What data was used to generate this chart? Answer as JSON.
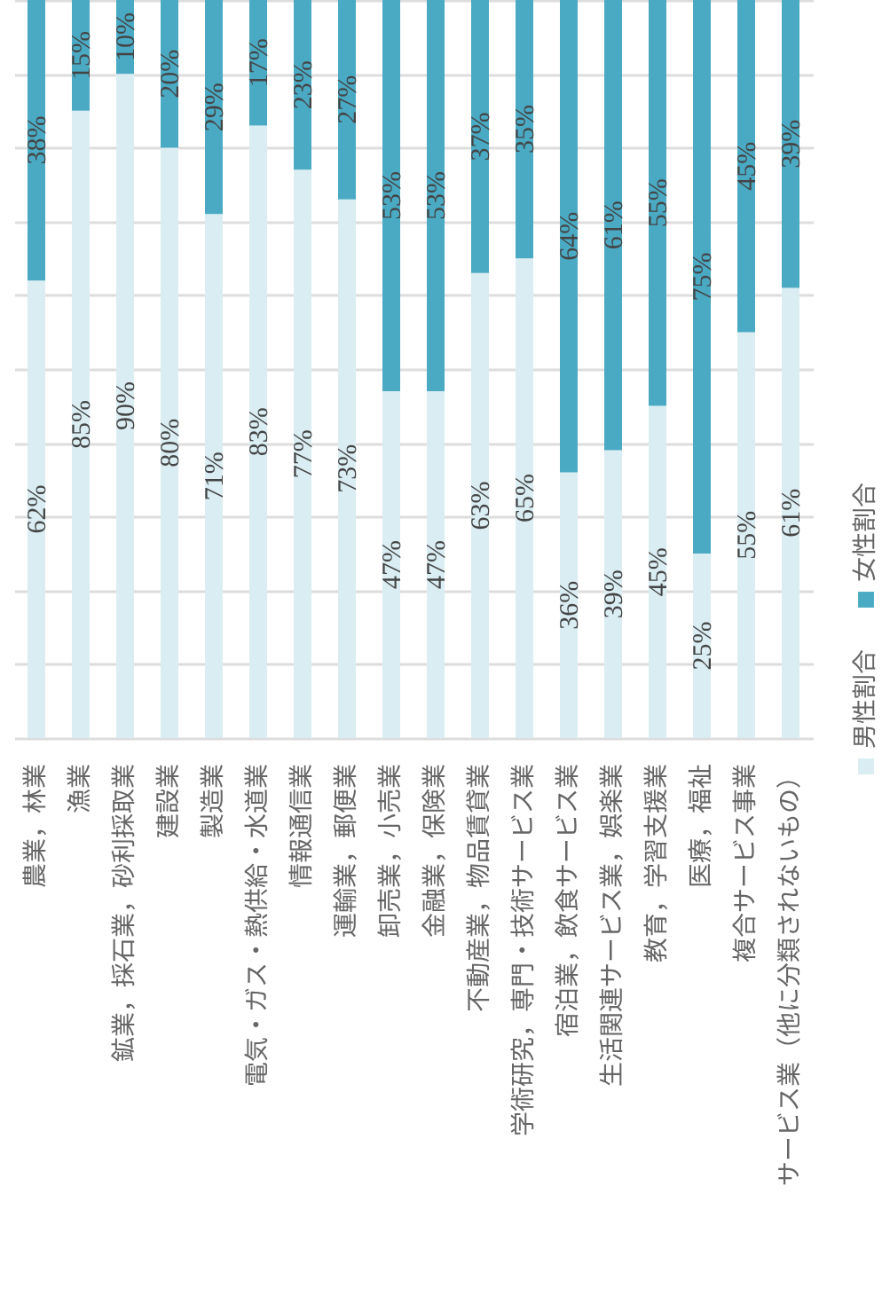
{
  "chart_data": {
    "type": "bar",
    "stacked": true,
    "categories": [
      "農業，林業",
      "漁業",
      "鉱業，採石業，砂利採取業",
      "建設業",
      "製造業",
      "電気・ガス・熱供給・水道業",
      "情報通信業",
      "運輸業，郵便業",
      "卸売業，小売業",
      "金融業，保険業",
      "不動産業，物品賃貸業",
      "学術研究，専門・技術サービス業",
      "宿泊業，飲食サービス業",
      "生活関連サービス業，娯楽業",
      "教育，学習支援業",
      "医療，福祉",
      "複合サービス事業",
      "サービス業（他に分類されないもの）"
    ],
    "series": [
      {
        "name": "男性割合",
        "color": "#d9edf2",
        "values": [
          62,
          85,
          90,
          80,
          71,
          83,
          77,
          73,
          47,
          47,
          63,
          65,
          36,
          39,
          45,
          25,
          55,
          61
        ],
        "value_labels": [
          "62%",
          "85%",
          "90%",
          "80%",
          "71%",
          "83%",
          "77%",
          "73%",
          "47%",
          "47%",
          "63%",
          "65%",
          "36%",
          "39%",
          "45%",
          "25%",
          "55%",
          "61%"
        ]
      },
      {
        "name": "女性割合",
        "color": "#4aaac4",
        "values": [
          38,
          15,
          10,
          20,
          29,
          17,
          23,
          27,
          53,
          53,
          37,
          35,
          64,
          61,
          55,
          75,
          45,
          39
        ],
        "value_labels": [
          "38%",
          "15%",
          "10%",
          "20%",
          "29%",
          "17%",
          "23%",
          "27%",
          "53%",
          "53%",
          "37%",
          "35%",
          "64%",
          "61%",
          "55%",
          "75%",
          "45%",
          "39%"
        ]
      }
    ],
    "ylim": [
      0,
      100
    ],
    "yticks": [
      {
        "value": 0,
        "label": null
      },
      {
        "value": 10,
        "label": null
      },
      {
        "value": 20,
        "label": null
      },
      {
        "value": 30,
        "label": null
      },
      {
        "value": 40,
        "label": null
      },
      {
        "value": 50,
        "label": null
      },
      {
        "value": 60,
        "label": null
      },
      {
        "value": 70,
        "label": null
      },
      {
        "value": 80,
        "label": null
      },
      {
        "value": 90,
        "label": null
      },
      {
        "value": 100,
        "label": null
      }
    ],
    "grid": "y",
    "tick_labels": "x",
    "legend": "right"
  }
}
